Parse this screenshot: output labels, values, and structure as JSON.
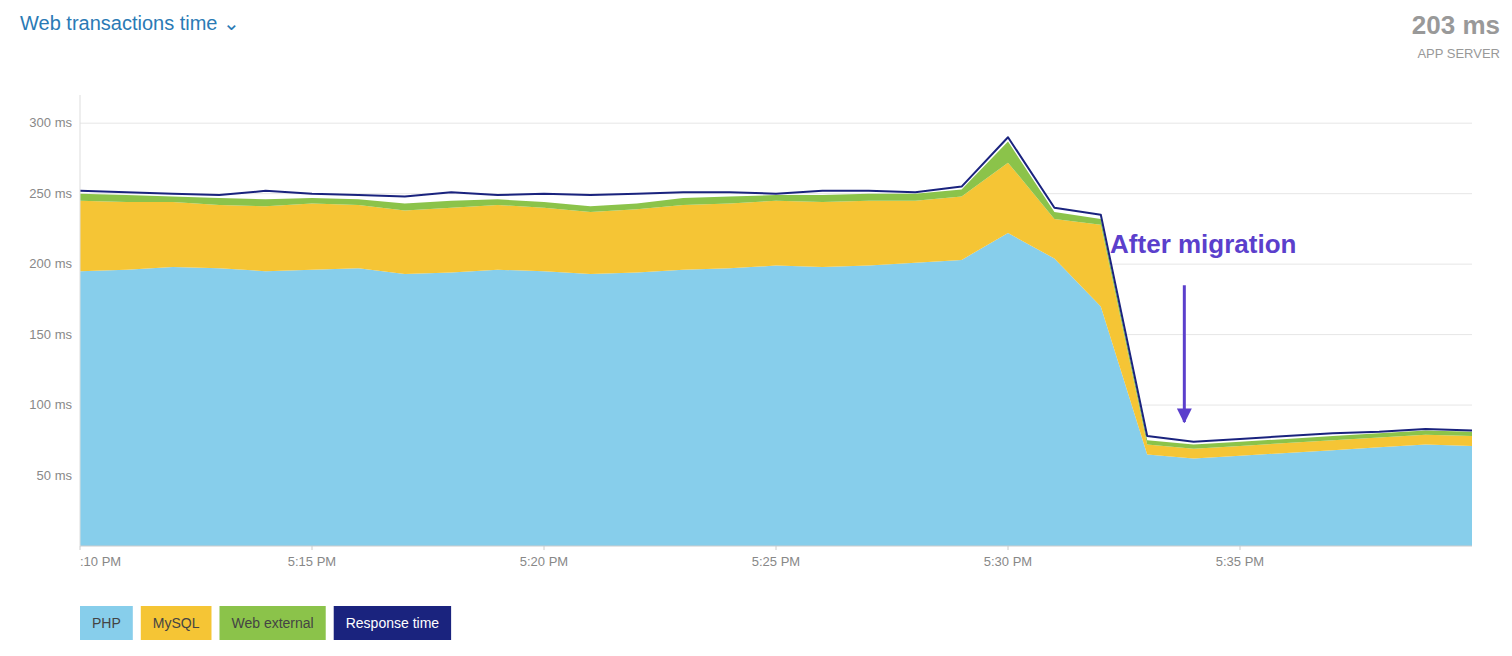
{
  "chart_data": {
    "type": "area",
    "stacked": true,
    "grid": true,
    "title": "Web transactions time  ⌄",
    "x": [
      0,
      1,
      2,
      3,
      4,
      5,
      6,
      7,
      8,
      9,
      10,
      11,
      12,
      13,
      14,
      15,
      16,
      17,
      18,
      19,
      20,
      21,
      22,
      23,
      24,
      25,
      26,
      27,
      28,
      29,
      30
    ],
    "xlim": [
      0,
      30
    ],
    "xticks": [
      {
        "value": 0,
        "label": ":10 PM"
      },
      {
        "value": 5,
        "label": "5:15 PM"
      },
      {
        "value": 10,
        "label": "5:20 PM"
      },
      {
        "value": 15,
        "label": "5:25 PM"
      },
      {
        "value": 20,
        "label": "5:30 PM"
      },
      {
        "value": 25,
        "label": "5:35 PM"
      }
    ],
    "ylim": [
      0,
      320
    ],
    "yticks": [
      {
        "value": 50,
        "label": "50 ms"
      },
      {
        "value": 100,
        "label": "100 ms"
      },
      {
        "value": 150,
        "label": "150 ms"
      },
      {
        "value": 200,
        "label": "200 ms"
      },
      {
        "value": 250,
        "label": "250 ms"
      },
      {
        "value": 300,
        "label": "300 ms"
      }
    ],
    "series": [
      {
        "name": "PHP",
        "type": "area",
        "color": "#87CEEB",
        "values": [
          195,
          196,
          198,
          197,
          195,
          196,
          197,
          193,
          194,
          196,
          195,
          193,
          194,
          196,
          197,
          199,
          198,
          199,
          201,
          203,
          222,
          204,
          170,
          65,
          62,
          64,
          66,
          68,
          70,
          72,
          71
        ]
      },
      {
        "name": "MySQL",
        "type": "area",
        "color": "#F5C535",
        "values": [
          50,
          48,
          46,
          45,
          46,
          47,
          45,
          45,
          46,
          46,
          45,
          44,
          45,
          46,
          46,
          46,
          46,
          46,
          44,
          45,
          50,
          28,
          58,
          7,
          7,
          7,
          7,
          7,
          7,
          7,
          7
        ]
      },
      {
        "name": "Web external",
        "type": "area",
        "color": "#8BC34A",
        "values": [
          5,
          5,
          4,
          5,
          5,
          4,
          4,
          5,
          5,
          4,
          4,
          4,
          4,
          5,
          5,
          4,
          5,
          5,
          5,
          5,
          15,
          5,
          4,
          3,
          3,
          3,
          3,
          3,
          3,
          3,
          3
        ]
      },
      {
        "name": "Response time",
        "type": "line",
        "color": "#1a237e",
        "values": [
          252,
          251,
          250,
          249,
          252,
          250,
          249,
          248,
          251,
          249,
          250,
          249,
          250,
          251,
          251,
          250,
          252,
          252,
          251,
          255,
          290,
          240,
          235,
          78,
          74,
          76,
          78,
          80,
          81,
          83,
          82
        ]
      }
    ],
    "annotations": [
      {
        "text": "After migration",
        "x": 22.2,
        "y": 205,
        "color": "#5b3fcc",
        "arrow": {
          "x": 23.8,
          "y_from": 185,
          "y_to": 88
        }
      },
      {
        "text": "203 ms"
      },
      {
        "text": "APP SERVER"
      }
    ]
  }
}
